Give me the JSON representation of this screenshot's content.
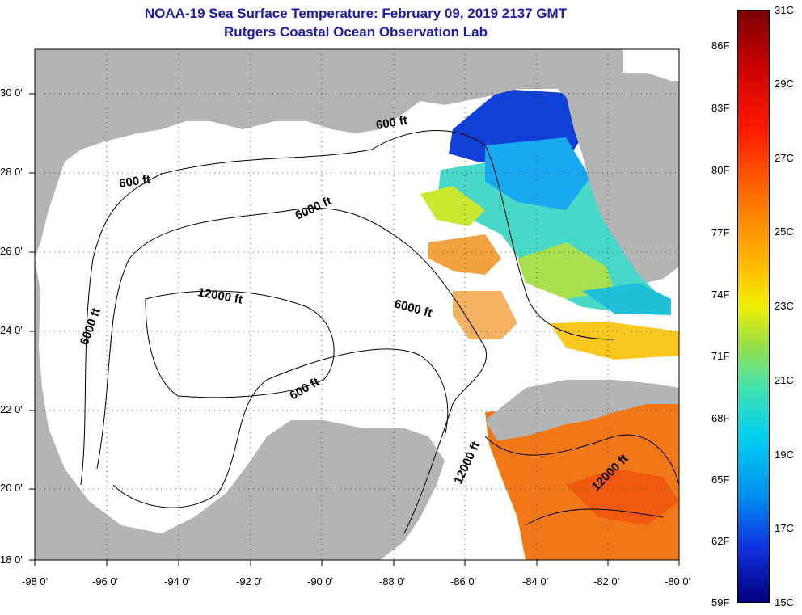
{
  "header": {
    "title": "NOAA-19 Sea Surface Temperature:  February 09, 2019 2137 GMT",
    "subtitle": "Rutgers Coastal Ocean Observation Lab"
  },
  "axes": {
    "longitude_labels": [
      "-98 0'",
      "-96 0'",
      "-94 0'",
      "-92 0'",
      "-90 0'",
      "-88 0'",
      "-86 0'",
      "-84 0'",
      "-82 0'",
      "-80 0'"
    ],
    "latitude_labels": [
      "30 0'",
      "28 0'",
      "26 0'",
      "24 0'",
      "22 0'",
      "20 0'",
      "18 0'"
    ]
  },
  "contours": {
    "labels": [
      "600 ft",
      "600 ft",
      "6000 ft",
      "12000 ft",
      "6000 ft",
      "6000 ft",
      "600 ft",
      "12000 ft",
      "12000 ft"
    ]
  },
  "colorbar": {
    "fahrenheit_labels": [
      "86F",
      "83F",
      "80F",
      "77F",
      "74F",
      "71F",
      "68F",
      "65F",
      "62F",
      "59F"
    ],
    "celsius_labels": [
      "31C",
      "29C",
      "27C",
      "25C",
      "23C",
      "21C",
      "19C",
      "17C",
      "15C"
    ]
  },
  "colors": {
    "title": "#1c1ca8",
    "land": "#b4b4b4",
    "ocean_no_data": "#ffffff"
  }
}
